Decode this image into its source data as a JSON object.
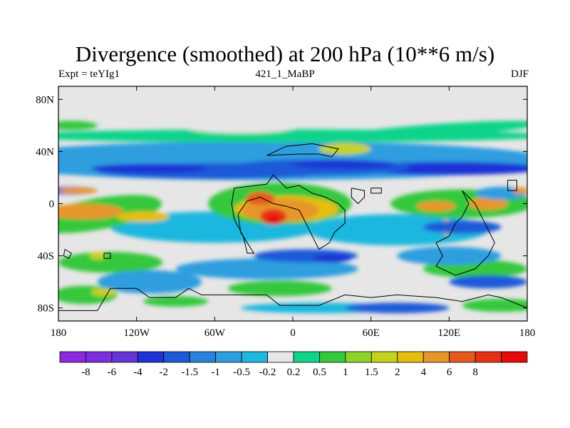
{
  "title": "Divergence (smoothed) at 200 hPa (10**6 m/s)",
  "subtitle_left": "Expt = teYIg1",
  "subtitle_center": "421_1_MaBP",
  "subtitle_right": "DJF",
  "chart_data": {
    "type": "heatmap",
    "title": "Divergence (smoothed) at 200 hPa (10**6 m/s)",
    "variable": "Divergence (smoothed)",
    "level": "200 hPa",
    "units": "10**6 m/s",
    "season": "DJF",
    "experiment": "teYIg1",
    "run": "421_1_MaBP",
    "x_range": [
      -180,
      180
    ],
    "y_range": [
      -90,
      90
    ],
    "x_ticks": [
      {
        "value": -180,
        "label": "180"
      },
      {
        "value": -120,
        "label": "120W"
      },
      {
        "value": -60,
        "label": "60W"
      },
      {
        "value": 0,
        "label": "0"
      },
      {
        "value": 60,
        "label": "60E"
      },
      {
        "value": 120,
        "label": "120E"
      },
      {
        "value": 180,
        "label": "180"
      }
    ],
    "y_ticks": [
      {
        "value": 80,
        "label": "80N"
      },
      {
        "value": 40,
        "label": "40N"
      },
      {
        "value": 0,
        "label": "0"
      },
      {
        "value": -40,
        "label": "40S"
      },
      {
        "value": -80,
        "label": "80S"
      }
    ],
    "colorbar": {
      "colors": [
        "#8a2be2",
        "#7d2ee0",
        "#6436da",
        "#1e32d6",
        "#1e5ad8",
        "#2c82dc",
        "#2e9edf",
        "#1fb7de",
        "#e6e6e6",
        "#11d48a",
        "#36c83c",
        "#8fd22b",
        "#c6d220",
        "#e4bf10",
        "#e6962a",
        "#e65a1e",
        "#e63214",
        "#e60a0a"
      ],
      "labels": [
        "-8",
        "-6",
        "-4",
        "-2",
        "-1.5",
        "-1",
        "-0.5",
        "-0.2",
        "0.2",
        "0.5",
        "1",
        "1.5",
        "2",
        "4",
        "6",
        "8"
      ]
    },
    "features": [
      {
        "lon": -160,
        "lat": -5,
        "value": 4,
        "desc": "maximum"
      },
      {
        "lon": -115,
        "lat": -10,
        "value": 2
      },
      {
        "lon": -15,
        "lat": -5,
        "value": 8,
        "desc": "maximum"
      },
      {
        "lon": -25,
        "lat": 5,
        "value": 4
      },
      {
        "lon": 10,
        "lat": -5,
        "value": 4
      },
      {
        "lon": 110,
        "lat": -2,
        "value": 6
      },
      {
        "lon": 150,
        "lat": 0,
        "value": 4
      },
      {
        "lon": -110,
        "lat": 28,
        "value": -2,
        "desc": "negative band"
      },
      {
        "lon": 40,
        "lat": -45,
        "value": -2,
        "desc": "negative band"
      },
      {
        "lon": -10,
        "lat": 60,
        "value": 1
      }
    ]
  }
}
